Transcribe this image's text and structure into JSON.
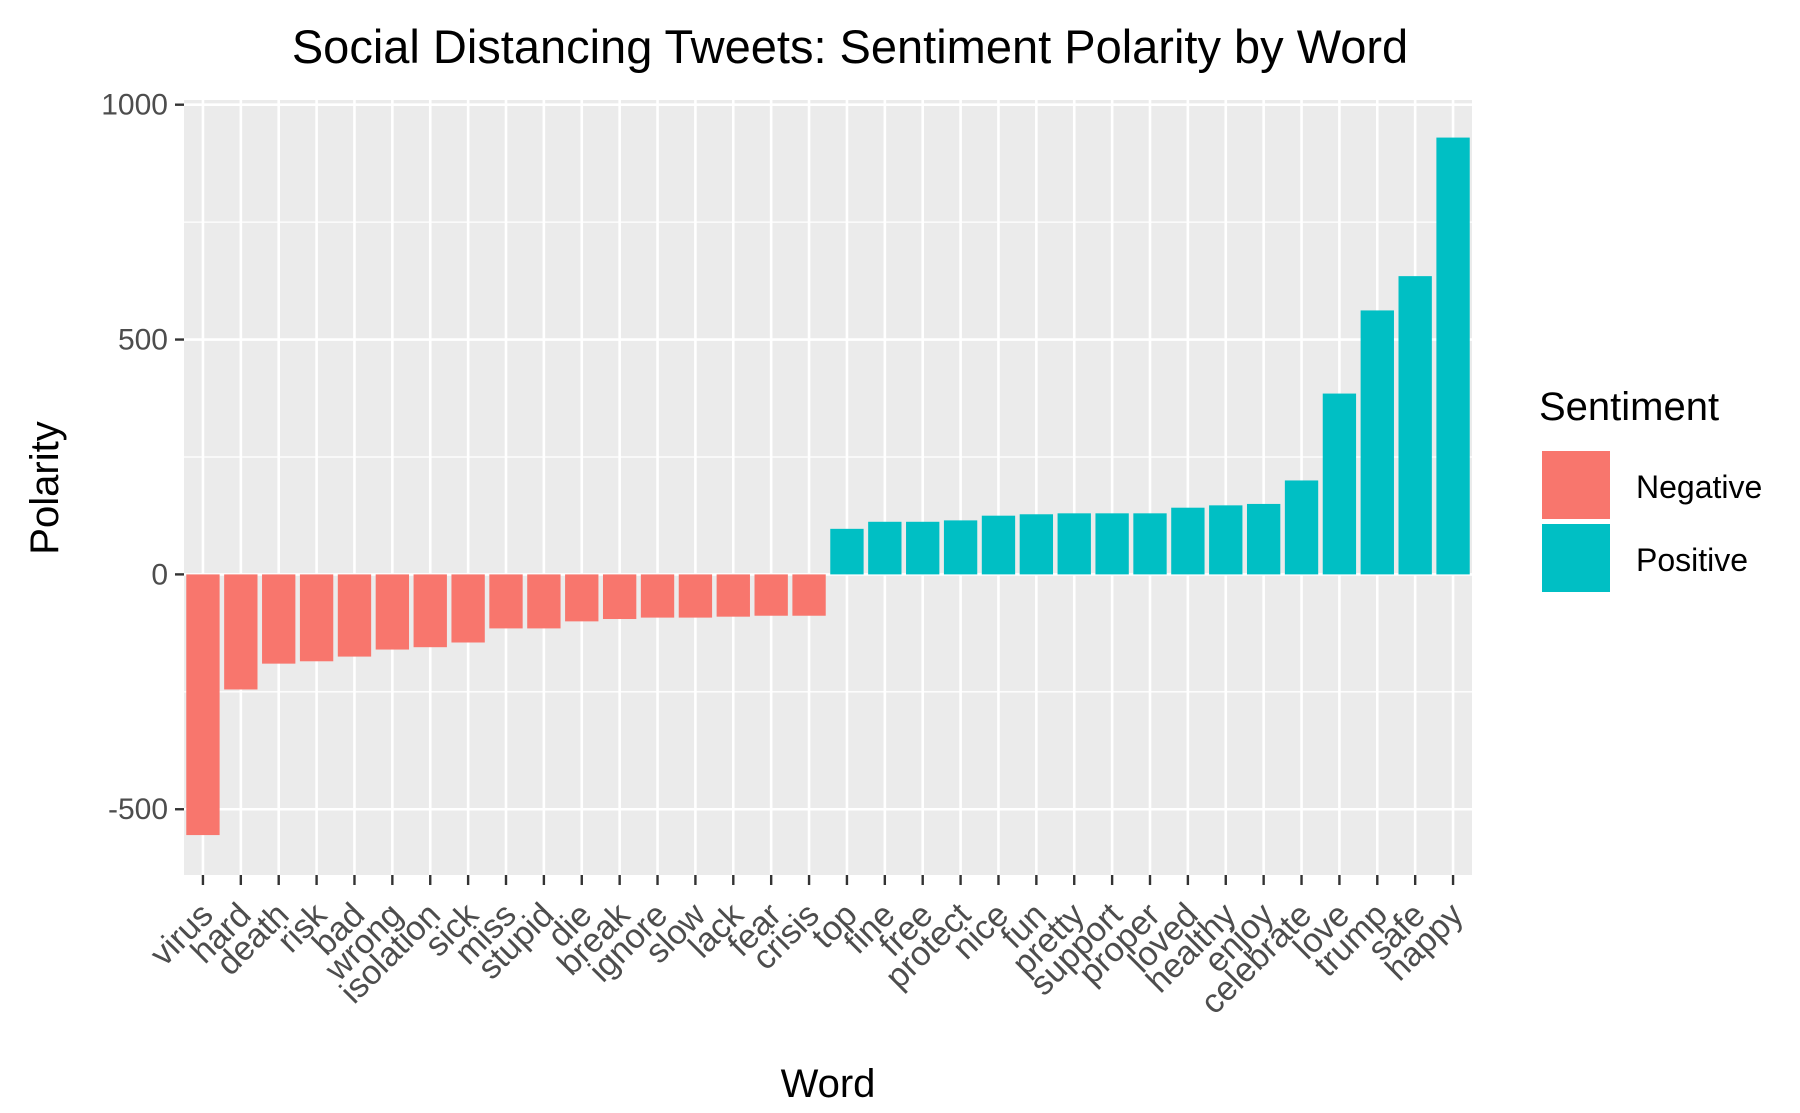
{
  "chart_data": {
    "type": "bar",
    "title": "Social Distancing Tweets: Sentiment Polarity by Word",
    "xlabel": "Word",
    "ylabel": "Polarity",
    "ylim": [
      -640,
      1010
    ],
    "yticks": [
      -500,
      0,
      500,
      1000
    ],
    "grid": true,
    "legend_position": "right",
    "legend": {
      "title": "Sentiment",
      "entries": [
        {
          "label": "Negative",
          "color": "#F8766D"
        },
        {
          "label": "Positive",
          "color": "#00BFC4"
        }
      ]
    },
    "categories": [
      "virus",
      "hard",
      "death",
      "risk",
      "bad",
      "wrong",
      "isolation",
      "sick",
      "miss",
      "stupid",
      "die",
      "break",
      "ignore",
      "slow",
      "lack",
      "fear",
      "crisis",
      "top",
      "fine",
      "free",
      "protect",
      "nice",
      "fun",
      "pretty",
      "support",
      "proper",
      "loved",
      "healthy",
      "enjoy",
      "celebrate",
      "love",
      "trump",
      "safe",
      "happy"
    ],
    "values": [
      -555,
      -245,
      -190,
      -185,
      -175,
      -160,
      -155,
      -145,
      -115,
      -115,
      -100,
      -95,
      -92,
      -92,
      -90,
      -88,
      -88,
      97,
      112,
      112,
      115,
      125,
      128,
      130,
      130,
      130,
      142,
      147,
      150,
      200,
      385,
      562,
      635,
      930
    ],
    "sentiment": [
      "Negative",
      "Negative",
      "Negative",
      "Negative",
      "Negative",
      "Negative",
      "Negative",
      "Negative",
      "Negative",
      "Negative",
      "Negative",
      "Negative",
      "Negative",
      "Negative",
      "Negative",
      "Negative",
      "Negative",
      "Positive",
      "Positive",
      "Positive",
      "Positive",
      "Positive",
      "Positive",
      "Positive",
      "Positive",
      "Positive",
      "Positive",
      "Positive",
      "Positive",
      "Positive",
      "Positive",
      "Positive",
      "Positive",
      "Positive"
    ]
  }
}
